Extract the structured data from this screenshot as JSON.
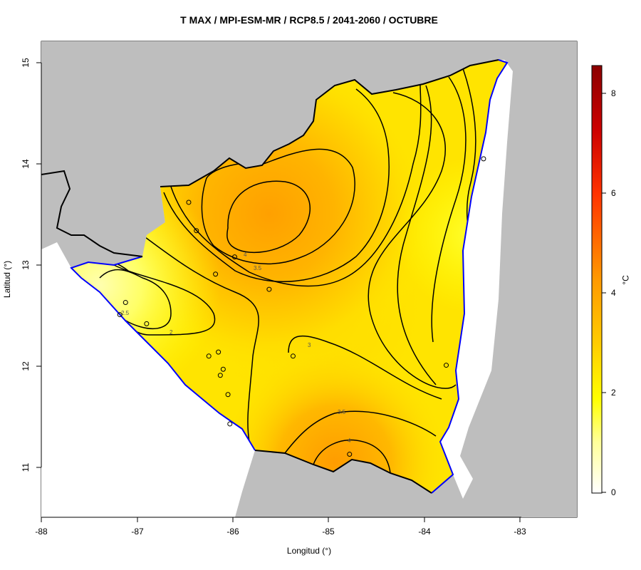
{
  "title": "T MAX / MPI-ESM-MR / RCP8.5 / 2041-2060 / OCTUBRE",
  "axes": {
    "xlabel": "Longitud (°)",
    "ylabel": "Latitud (°)",
    "x_ticks": [
      "-88",
      "-87",
      "-86",
      "-85",
      "-84",
      "-83"
    ],
    "y_ticks": [
      "15",
      "14",
      "13",
      "12",
      "11"
    ],
    "xlim": [
      -88,
      -82.4
    ],
    "ylim": [
      10.5,
      15.2
    ]
  },
  "colorbar": {
    "unit": "°C",
    "ticks": [
      "8",
      "6",
      "4",
      "2",
      "0"
    ],
    "range": [
      0,
      8.6
    ],
    "colors": [
      "#ffffff",
      "#ffff99",
      "#ffff00",
      "#ffcc00",
      "#ff9900",
      "#ff3300",
      "#cc0000",
      "#8b0000"
    ]
  },
  "contour_labels": [
    "4",
    "3.5",
    "2.5",
    "2",
    "3",
    "3.5",
    "4"
  ],
  "colors": {
    "land_outside": "#bebebe",
    "coast": "#0000ff",
    "border": "#000000"
  },
  "chart_data": {
    "type": "heatmap",
    "title": "T MAX / MPI-ESM-MR / RCP8.5 / 2041-2060 / OCTUBRE",
    "xlabel": "Longitud (°)",
    "ylabel": "Latitud (°)",
    "units": "°C",
    "contour_levels": [
      2,
      2.5,
      3,
      3.5,
      4
    ],
    "stations": [
      {
        "lon": -86.46,
        "lat": 13.62
      },
      {
        "lon": -86.38,
        "lat": 13.34
      },
      {
        "lon": -85.98,
        "lat": 13.08
      },
      {
        "lon": -86.18,
        "lat": 12.91
      },
      {
        "lon": -85.62,
        "lat": 12.76
      },
      {
        "lon": -87.12,
        "lat": 12.63
      },
      {
        "lon": -87.18,
        "lat": 12.51
      },
      {
        "lon": -86.9,
        "lat": 12.42
      },
      {
        "lon": -86.15,
        "lat": 12.14
      },
      {
        "lon": -86.25,
        "lat": 12.1
      },
      {
        "lon": -85.37,
        "lat": 12.1
      },
      {
        "lon": -86.1,
        "lat": 11.97
      },
      {
        "lon": -86.13,
        "lat": 11.91
      },
      {
        "lon": -86.05,
        "lat": 11.72
      },
      {
        "lon": -86.03,
        "lat": 11.43
      },
      {
        "lon": -84.78,
        "lat": 11.13
      },
      {
        "lon": -83.77,
        "lat": 12.01
      },
      {
        "lon": -83.38,
        "lat": 14.05
      }
    ]
  }
}
